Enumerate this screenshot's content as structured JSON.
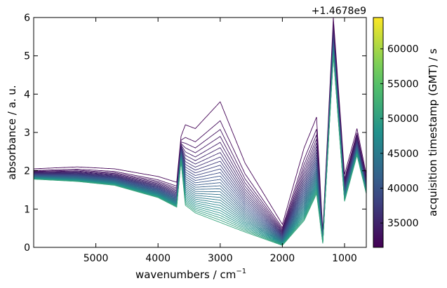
{
  "chart_data": {
    "type": "line",
    "xlabel": "wavenumbers / cm",
    "xlabel_sup": "−1",
    "ylabel": "absorbance / a. u.",
    "xlim": [
      6000,
      650
    ],
    "ylim": [
      0,
      6
    ],
    "x_inverted": true,
    "xticks": [
      5000,
      4000,
      3000,
      2000,
      1000
    ],
    "xtick_labels": [
      "5000",
      "4000",
      "3000",
      "2000",
      "1000"
    ],
    "yticks": [
      0,
      1,
      2,
      3,
      4,
      5,
      6
    ],
    "ytick_labels": [
      "0",
      "1",
      "2",
      "3",
      "4",
      "5",
      "6"
    ],
    "grid": false,
    "legend": "none",
    "offset_label": "+1.4678e9",
    "colorbar": {
      "label": "acquisition timestamp (GMT) / s",
      "colormap": "viridis",
      "range": [
        31500,
        64500
      ],
      "ticks": [
        35000,
        40000,
        45000,
        50000,
        55000,
        60000
      ],
      "tick_labels": [
        "35000",
        "40000",
        "45000",
        "50000",
        "55000",
        "60000"
      ],
      "colors": [
        "#440154",
        "#3b528b",
        "#21918c",
        "#5ec962",
        "#fde725"
      ]
    },
    "series_count": 30,
    "series_timestamp_range": [
      31800,
      51000
    ],
    "series_profile": {
      "description_free_keypoints": [
        {
          "x": 6000,
          "first": 2.05,
          "last": 1.78
        },
        {
          "x": 5300,
          "first": 2.1,
          "last": 1.72
        },
        {
          "x": 4700,
          "first": 2.05,
          "last": 1.62
        },
        {
          "x": 4000,
          "first": 1.85,
          "last": 1.3
        },
        {
          "x": 3700,
          "first": 1.7,
          "last": 1.05
        },
        {
          "x": 3630,
          "first": 2.9,
          "last": 2.25
        },
        {
          "x": 3560,
          "first": 3.2,
          "last": 1.1
        },
        {
          "x": 3400,
          "first": 3.1,
          "last": 0.9
        },
        {
          "x": 3000,
          "first": 3.8,
          "last": 0.65
        },
        {
          "x": 2600,
          "first": 2.2,
          "last": 0.4
        },
        {
          "x": 2000,
          "first": 0.6,
          "last": 0.05
        },
        {
          "x": 1650,
          "first": 2.6,
          "last": 0.7
        },
        {
          "x": 1450,
          "first": 3.4,
          "last": 1.4
        },
        {
          "x": 1350,
          "first": 0.4,
          "last": 0.1
        },
        {
          "x": 1180,
          "first": 6.0,
          "last": 5.0
        },
        {
          "x": 1000,
          "first": 1.9,
          "last": 1.2
        },
        {
          "x": 800,
          "first": 3.1,
          "last": 2.4
        },
        {
          "x": 650,
          "first": 1.9,
          "last": 1.4
        }
      ]
    }
  }
}
